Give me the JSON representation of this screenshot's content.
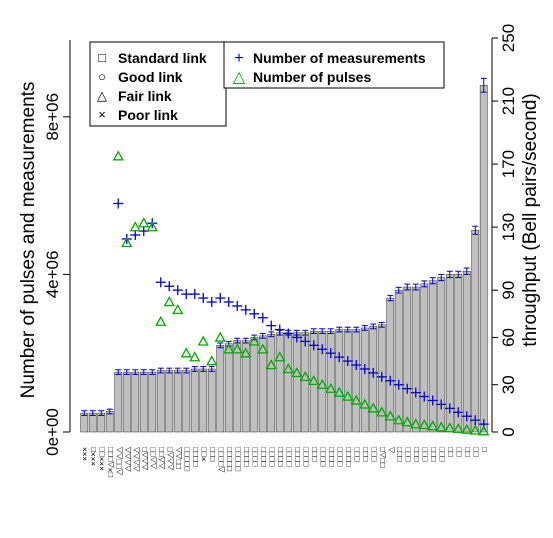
{
  "chart_data": {
    "type": "bar",
    "xlabel": "",
    "ylabel_left": "Number of pulses and measurements",
    "ylabel_right": "throughput (Bell pairs/second)",
    "left_axis": {
      "ylim": [
        0,
        10000000
      ],
      "ticks": [
        0,
        4000000,
        8000000
      ],
      "tick_labels": [
        "0e+00",
        "4e+06",
        "8e+06"
      ]
    },
    "right_axis": {
      "ylim": [
        0,
        250
      ],
      "ticks": [
        0,
        30,
        60,
        90,
        130,
        170,
        210,
        250
      ],
      "tick_labels": [
        "0",
        "30",
        "60",
        "90",
        "130",
        "170",
        "210",
        "250"
      ]
    },
    "categories": [
      "×××",
      "×××□",
      "×××□□",
      "□×△□□□",
      "△□□△△",
      "△△△△",
      "△△△△",
      "△△△□",
      "△△□□",
      "△△□□",
      "△△△□",
      "□□△△",
      "□□□□□",
      "□□□□",
      "×□□",
      "□□□",
      "△□□□□",
      "□□□□□",
      "□□□□□",
      "□□□□",
      "□□□□",
      "□□□□",
      "□□□□",
      "□□□□",
      "□□□□",
      "□□□□",
      "□□□□",
      "□□□",
      "□□□□",
      "□□□□",
      "□□□□",
      "□□□□",
      "□□□",
      "□□□",
      "□□□",
      "□□△□",
      "△",
      "□□□",
      "□□□",
      "□□□",
      "□□□",
      "□□□",
      "□□□",
      "□□",
      "□□",
      "□□",
      "□□",
      "□"
    ],
    "throughput": [
      12,
      12,
      12,
      13,
      38,
      38,
      38,
      38,
      38,
      39,
      39,
      39,
      39,
      40,
      40,
      40,
      55,
      56,
      58,
      58,
      60,
      61,
      62,
      63,
      63,
      63,
      63,
      64,
      64,
      64,
      65,
      65,
      65,
      66,
      67,
      68,
      85,
      90,
      92,
      92,
      94,
      96,
      98,
      100,
      100,
      102,
      128,
      220
    ],
    "series": [
      {
        "name": "Number of measurements",
        "marker": "+",
        "color": "#0000cc",
        "axis": "left",
        "values": [
          null,
          null,
          null,
          null,
          5800000,
          4900000,
          5000000,
          5100000,
          5300000,
          3800000,
          3700000,
          3600000,
          3500000,
          3500000,
          3400000,
          3300000,
          3400000,
          3300000,
          3200000,
          3100000,
          3000000,
          2900000,
          2700000,
          2600000,
          2500000,
          2400000,
          2300000,
          2200000,
          2100000,
          2000000,
          1900000,
          1800000,
          1700000,
          1600000,
          1500000,
          1400000,
          1300000,
          1200000,
          1100000,
          1000000,
          900000,
          800000,
          700000,
          600000,
          500000,
          400000,
          300000,
          200000
        ]
      },
      {
        "name": "Number of pulses",
        "marker": "triangle",
        "color": "#00aa00",
        "axis": "left",
        "values": [
          null,
          null,
          null,
          null,
          7000000,
          4800000,
          5200000,
          5300000,
          5200000,
          2800000,
          3300000,
          3100000,
          2000000,
          1900000,
          2300000,
          1800000,
          2400000,
          2100000,
          2100000,
          2000000,
          2300000,
          2100000,
          1700000,
          1900000,
          1600000,
          1500000,
          1400000,
          1300000,
          1200000,
          1100000,
          1000000,
          900000,
          800000,
          700000,
          600000,
          500000,
          400000,
          300000,
          250000,
          200000,
          180000,
          150000,
          120000,
          100000,
          80000,
          60000,
          40000,
          20000
        ]
      }
    ],
    "legend_link": {
      "placement": "top-left",
      "entries": [
        {
          "symbol": "□",
          "label": "Standard link"
        },
        {
          "symbol": "○",
          "label": "Good link"
        },
        {
          "symbol": "△",
          "label": "Fair link"
        },
        {
          "symbol": "×",
          "label": "Poor link"
        }
      ]
    },
    "legend_series": {
      "placement": "top",
      "entries": [
        {
          "symbol": "+",
          "label": "Number of measurements",
          "color": "#0000cc"
        },
        {
          "symbol": "△",
          "label": "Number of pulses",
          "color": "#00aa00"
        }
      ]
    },
    "colors": {
      "bar": "#bfbfbf",
      "bar_edge": "#000000",
      "error_bar": "#0000cc",
      "measurements": "#0000cc",
      "pulses": "#00aa00"
    }
  }
}
